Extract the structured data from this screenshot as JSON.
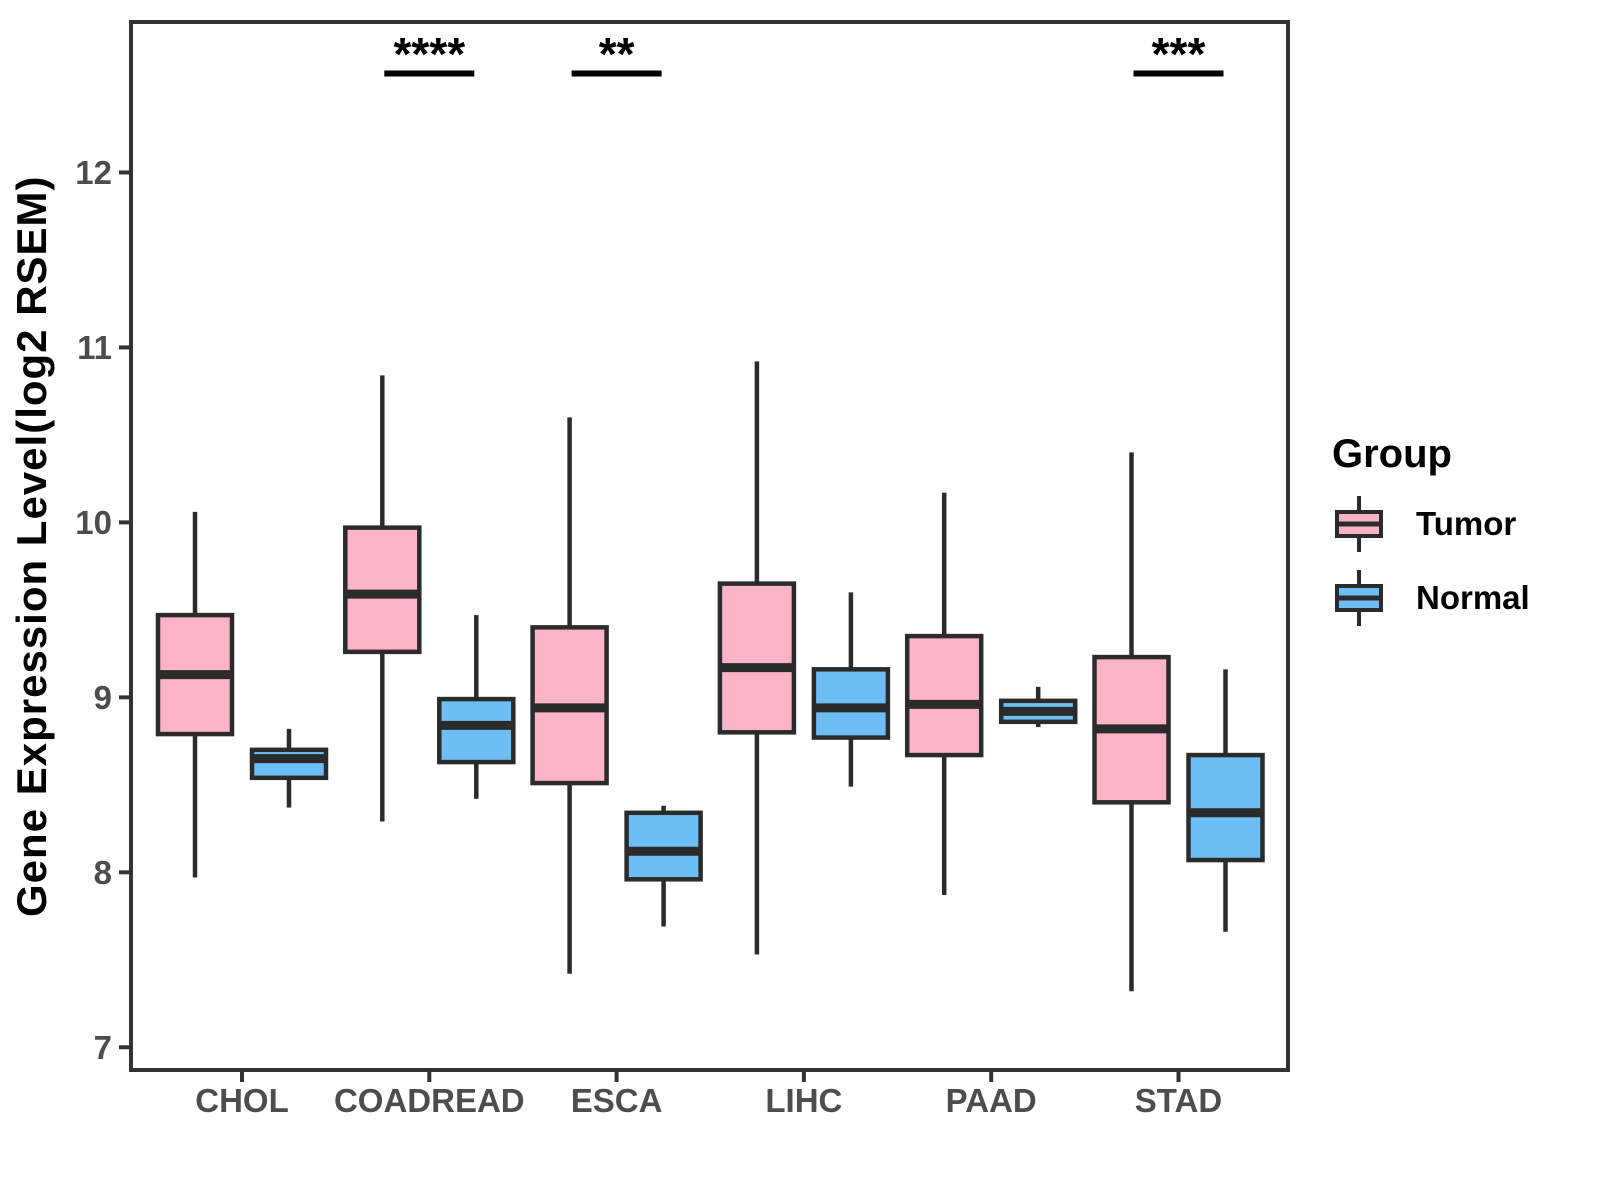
{
  "chart_data": {
    "type": "boxplot",
    "title": "",
    "xlabel": "",
    "ylabel": "Gene Expression Level(log2 RSEM)",
    "yticks": [
      7,
      8,
      9,
      10,
      11,
      12
    ],
    "ylim": [
      6.87,
      12.86
    ],
    "grid": false,
    "categories": [
      "CHOL",
      "COADREAD",
      "ESCA",
      "LIHC",
      "PAAD",
      "STAD"
    ],
    "series": [
      {
        "name": "Tumor",
        "color": "#FAB4C5",
        "stats": [
          {
            "category": "CHOL",
            "whisker_low": 7.97,
            "q1": 8.79,
            "median": 9.13,
            "q3": 9.47,
            "whisker_high": 10.06
          },
          {
            "category": "COADREAD",
            "whisker_low": 8.29,
            "q1": 9.26,
            "median": 9.59,
            "q3": 9.97,
            "whisker_high": 10.84
          },
          {
            "category": "ESCA",
            "whisker_low": 7.42,
            "q1": 8.51,
            "median": 8.94,
            "q3": 9.4,
            "whisker_high": 10.6
          },
          {
            "category": "LIHC",
            "whisker_low": 7.53,
            "q1": 8.8,
            "median": 9.17,
            "q3": 9.65,
            "whisker_high": 10.92
          },
          {
            "category": "PAAD",
            "whisker_low": 7.87,
            "q1": 8.67,
            "median": 8.96,
            "q3": 9.35,
            "whisker_high": 10.17
          },
          {
            "category": "STAD",
            "whisker_low": 7.32,
            "q1": 8.4,
            "median": 8.82,
            "q3": 9.23,
            "whisker_high": 10.4
          }
        ]
      },
      {
        "name": "Normal",
        "color": "#6CBEF5",
        "stats": [
          {
            "category": "CHOL",
            "whisker_low": 8.37,
            "q1": 8.54,
            "median": 8.65,
            "q3": 8.7,
            "whisker_high": 8.82
          },
          {
            "category": "COADREAD",
            "whisker_low": 8.42,
            "q1": 8.63,
            "median": 8.84,
            "q3": 8.99,
            "whisker_high": 9.47
          },
          {
            "category": "ESCA",
            "whisker_low": 7.69,
            "q1": 7.96,
            "median": 8.12,
            "q3": 8.34,
            "whisker_high": 8.38
          },
          {
            "category": "LIHC",
            "whisker_low": 8.49,
            "q1": 8.77,
            "median": 8.94,
            "q3": 9.16,
            "whisker_high": 9.6
          },
          {
            "category": "PAAD",
            "whisker_low": 8.83,
            "q1": 8.86,
            "median": 8.92,
            "q3": 8.98,
            "whisker_high": 9.06
          },
          {
            "category": "STAD",
            "whisker_low": 7.66,
            "q1": 8.07,
            "median": 8.34,
            "q3": 8.67,
            "whisker_high": 9.16
          }
        ]
      }
    ],
    "significance": [
      {
        "category": "COADREAD",
        "label": "****"
      },
      {
        "category": "ESCA",
        "label": "**"
      },
      {
        "category": "STAD",
        "label": "***"
      }
    ],
    "legend": {
      "title": "Group",
      "position": "right",
      "entries": [
        {
          "label": "Tumor",
          "color": "#FAB4C5"
        },
        {
          "label": "Normal",
          "color": "#6CBEF5"
        }
      ]
    },
    "colors": {
      "box_stroke": "#2B2B2B",
      "axis_line": "#333333",
      "tick_text": "#4D4D4D",
      "title_text": "#000000",
      "background": "#FFFFFF"
    }
  }
}
